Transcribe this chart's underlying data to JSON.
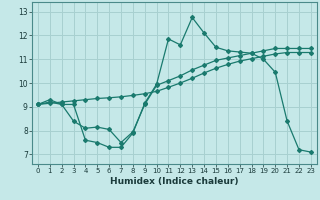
{
  "xlabel": "Humidex (Indice chaleur)",
  "bg_color": "#c5e8e8",
  "grid_color": "#a8d0d0",
  "line_color": "#1a7a6e",
  "xlim": [
    -0.5,
    23.5
  ],
  "ylim": [
    6.6,
    13.4
  ],
  "xticks": [
    0,
    1,
    2,
    3,
    4,
    5,
    6,
    7,
    8,
    9,
    10,
    11,
    12,
    13,
    14,
    15,
    16,
    17,
    18,
    19,
    20,
    21,
    22,
    23
  ],
  "yticks": [
    7,
    8,
    9,
    10,
    11,
    12,
    13
  ],
  "line1_x": [
    0,
    1,
    2,
    3,
    4,
    5,
    6,
    7,
    8,
    9,
    10,
    11,
    12,
    13,
    14,
    15,
    16,
    17,
    18,
    19,
    20,
    21,
    22,
    23
  ],
  "line1_y": [
    9.1,
    9.3,
    9.1,
    9.1,
    7.6,
    7.5,
    7.3,
    7.3,
    7.9,
    9.15,
    9.95,
    11.85,
    11.6,
    12.75,
    12.1,
    11.5,
    11.35,
    11.3,
    11.25,
    11.0,
    10.45,
    8.4,
    7.2,
    7.1
  ],
  "line2_x": [
    0,
    1,
    2,
    3,
    4,
    5,
    6,
    7,
    8,
    9,
    10,
    11,
    12,
    13,
    14,
    15,
    16,
    17,
    18,
    19,
    20,
    21,
    22,
    23
  ],
  "line2_y": [
    9.1,
    9.2,
    9.1,
    8.4,
    8.1,
    8.15,
    8.05,
    7.5,
    7.95,
    9.1,
    9.9,
    10.1,
    10.3,
    10.55,
    10.75,
    10.95,
    11.05,
    11.15,
    11.25,
    11.35,
    11.45,
    11.45,
    11.45,
    11.45
  ],
  "line3_x": [
    0,
    1,
    2,
    3,
    4,
    5,
    6,
    7,
    8,
    9,
    10,
    11,
    12,
    13,
    14,
    15,
    16,
    17,
    18,
    19,
    20,
    21,
    22,
    23
  ],
  "line3_y": [
    9.1,
    9.15,
    9.2,
    9.25,
    9.3,
    9.35,
    9.38,
    9.42,
    9.48,
    9.55,
    9.65,
    9.82,
    10.0,
    10.2,
    10.42,
    10.62,
    10.78,
    10.92,
    11.02,
    11.12,
    11.22,
    11.28,
    11.28,
    11.28
  ]
}
